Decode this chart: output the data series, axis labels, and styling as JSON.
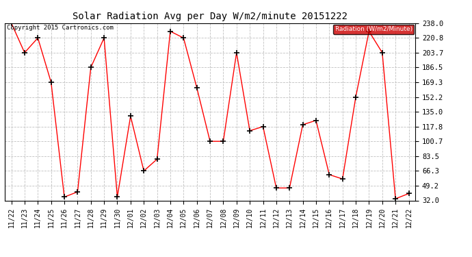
{
  "title": "Solar Radiation Avg per Day W/m2/minute 20151222",
  "copyright_text": "Copyright 2015 Cartronics.com",
  "legend_label": "Radiation (W/m2/Minute)",
  "dates": [
    "11/22",
    "11/23",
    "11/24",
    "11/25",
    "11/26",
    "11/27",
    "11/28",
    "11/29",
    "11/30",
    "12/01",
    "12/02",
    "12/03",
    "12/04",
    "12/05",
    "12/06",
    "12/07",
    "12/08",
    "12/09",
    "12/10",
    "12/11",
    "12/12",
    "12/13",
    "12/14",
    "12/15",
    "12/16",
    "12/17",
    "12/18",
    "12/19",
    "12/20",
    "12/21",
    "12/22"
  ],
  "values": [
    238.0,
    203.7,
    220.8,
    169.3,
    36.0,
    42.0,
    186.5,
    220.8,
    36.0,
    130.0,
    66.3,
    80.0,
    228.5,
    220.8,
    163.0,
    100.7,
    100.7,
    203.7,
    113.0,
    117.8,
    46.5,
    46.5,
    120.0,
    125.0,
    62.0,
    57.0,
    152.2,
    228.5,
    203.7,
    34.0,
    40.0
  ],
  "line_color": "red",
  "marker": "+",
  "marker_color": "black",
  "bg_color": "#ffffff",
  "grid_color": "#c0c0c0",
  "ylim": [
    32.0,
    238.0
  ],
  "yticks": [
    32.0,
    49.2,
    66.3,
    83.5,
    100.7,
    117.8,
    135.0,
    152.2,
    169.3,
    186.5,
    203.7,
    220.8,
    238.0
  ],
  "legend_bg": "#cc0000",
  "legend_text_color": "white",
  "title_fontsize": 10,
  "tick_fontsize": 7,
  "ytick_fontsize": 7.5
}
